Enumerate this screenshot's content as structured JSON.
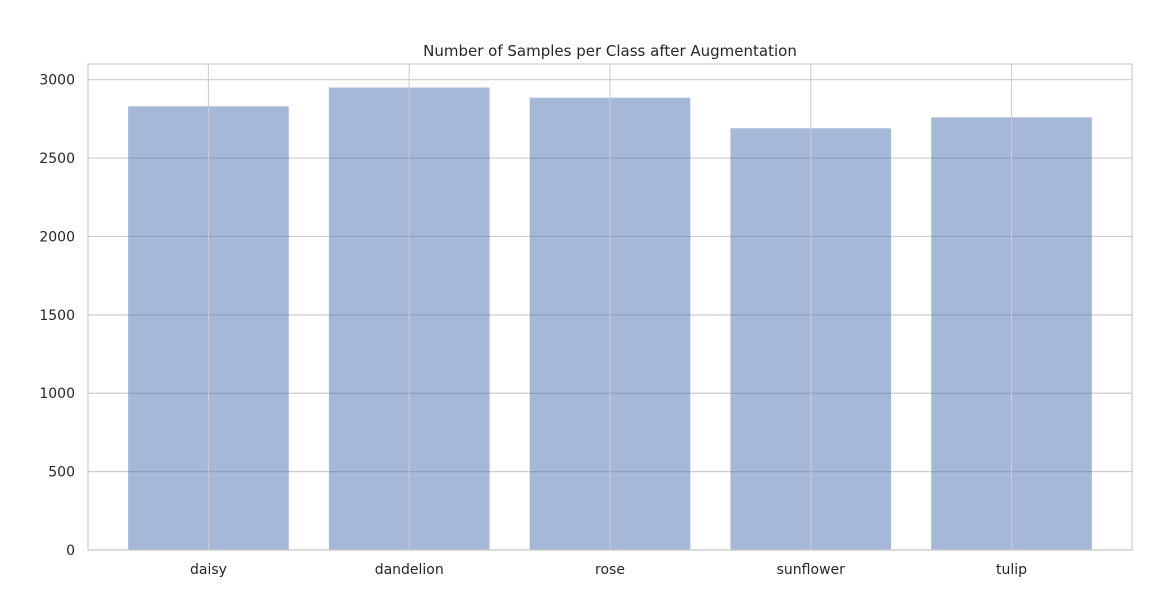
{
  "chart_data": {
    "type": "bar",
    "title": "Number of Samples per Class after Augmentation",
    "xlabel": "",
    "ylabel": "",
    "categories": [
      "daisy",
      "dandelion",
      "rose",
      "sunflower",
      "tulip"
    ],
    "values": [
      2830,
      2950,
      2885,
      2690,
      2760
    ],
    "ylim": [
      0,
      3100
    ],
    "yticks": [
      0,
      500,
      1000,
      1500,
      2000,
      2500,
      3000
    ],
    "grid": true,
    "bar_color": "#4c72b0",
    "bar_opacity": 0.5,
    "grid_color": "#cccccc",
    "axis_color": "#cccccc",
    "text_color": "#262626"
  }
}
